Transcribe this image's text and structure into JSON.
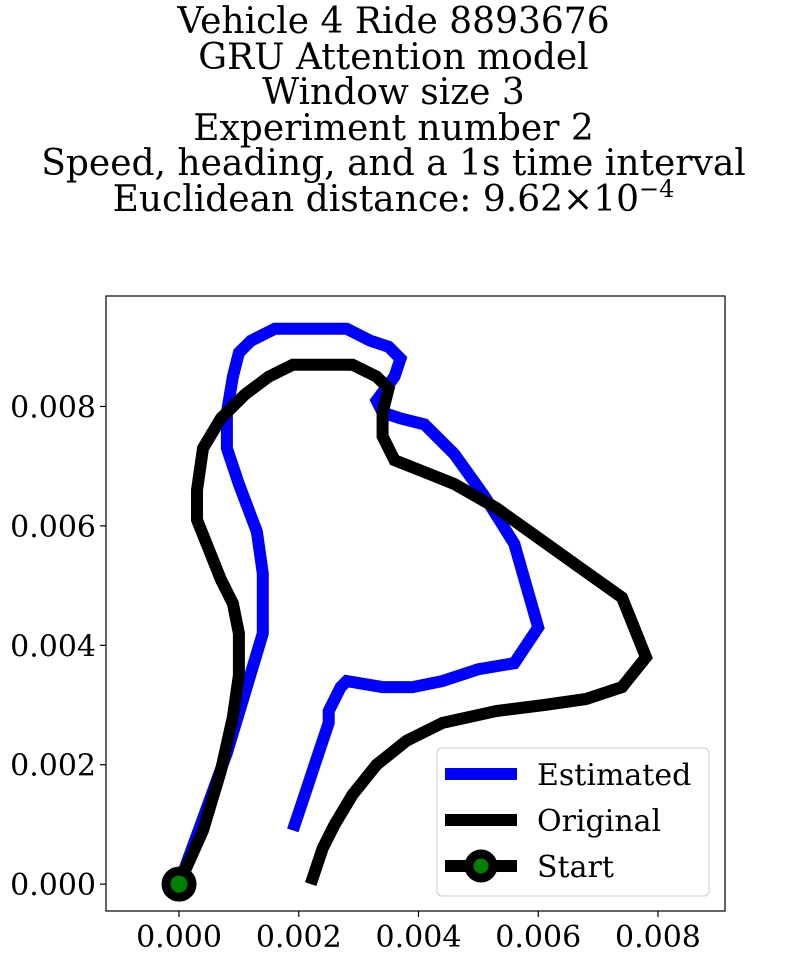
{
  "chart_data": {
    "type": "line",
    "title_lines": [
      "Vehicle 4 Ride 8893676",
      "GRU Attention model",
      "Window size 3",
      "Experiment number 2",
      "Speed, heading, and a 1s time interval"
    ],
    "distance_label": "Euclidean distance: 9.62",
    "distance_times": "×",
    "distance_base": "10",
    "distance_exponent": "−4",
    "xlim": [
      -0.00122,
      0.00912
    ],
    "ylim": [
      -0.00045,
      0.00985
    ],
    "xticks": [
      0.0,
      0.002,
      0.004,
      0.006,
      0.008
    ],
    "yticks": [
      0.0,
      0.002,
      0.004,
      0.006,
      0.008
    ],
    "xtick_labels": [
      "0.000",
      "0.002",
      "0.004",
      "0.006",
      "0.008"
    ],
    "ytick_labels": [
      "0.000",
      "0.002",
      "0.004",
      "0.006",
      "0.008"
    ],
    "grid": false,
    "legend_position": "lower-right",
    "series": [
      {
        "name": "Estimated",
        "color": "#0000ff",
        "x": [
          0.0,
          0.0004,
          0.0008,
          0.0011,
          0.0014,
          0.0014,
          0.0013,
          0.001,
          0.0008,
          0.0008,
          0.0009,
          0.001,
          0.0012,
          0.0016,
          0.0021,
          0.0025,
          0.0028,
          0.0032,
          0.0035,
          0.0037,
          0.0036,
          0.0033,
          0.0034,
          0.0037,
          0.0041,
          0.0046,
          0.0051,
          0.0056,
          0.006,
          0.0056,
          0.005,
          0.0044,
          0.0039,
          0.0034,
          0.0028,
          0.0027,
          0.0025,
          0.0025,
          0.0023,
          0.0021,
          0.0019
        ],
        "y": [
          0.0,
          0.0011,
          0.0022,
          0.0032,
          0.0042,
          0.0052,
          0.0059,
          0.0067,
          0.0073,
          0.0079,
          0.0085,
          0.0089,
          0.0091,
          0.0093,
          0.0093,
          0.0093,
          0.0093,
          0.0091,
          0.009,
          0.0088,
          0.0085,
          0.0081,
          0.0079,
          0.0078,
          0.0077,
          0.0072,
          0.0065,
          0.0057,
          0.0043,
          0.0037,
          0.0036,
          0.0034,
          0.0033,
          0.0033,
          0.0034,
          0.0033,
          0.0029,
          0.0027,
          0.0021,
          0.0015,
          0.0009
        ]
      },
      {
        "name": "Original",
        "color": "#000000",
        "x": [
          0.0,
          0.0004,
          0.0007,
          0.0009,
          0.001,
          0.001,
          0.0009,
          0.0007,
          0.0005,
          0.0003,
          0.0003,
          0.0004,
          0.0007,
          0.0011,
          0.0015,
          0.0019,
          0.0024,
          0.0029,
          0.0033,
          0.0035,
          0.0034,
          0.0034,
          0.0035,
          0.0036,
          0.0041,
          0.0046,
          0.0053,
          0.006,
          0.0067,
          0.0074,
          0.0078,
          0.0074,
          0.0068,
          0.0061,
          0.0053,
          0.0044,
          0.0038,
          0.0033,
          0.0029,
          0.0026,
          0.0024,
          0.0023,
          0.0022
        ],
        "y": [
          0.0,
          0.0009,
          0.0019,
          0.0028,
          0.0035,
          0.0042,
          0.0047,
          0.0051,
          0.0056,
          0.0061,
          0.0066,
          0.0073,
          0.0078,
          0.0082,
          0.0085,
          0.0087,
          0.0087,
          0.0087,
          0.0085,
          0.0083,
          0.0079,
          0.0075,
          0.0073,
          0.0071,
          0.0069,
          0.0067,
          0.0063,
          0.0058,
          0.0053,
          0.0048,
          0.0038,
          0.0033,
          0.0031,
          0.003,
          0.0029,
          0.0027,
          0.0024,
          0.002,
          0.0015,
          0.001,
          0.0006,
          0.0003,
          0.0
        ]
      }
    ],
    "start": {
      "name": "Start",
      "x": 0.0,
      "y": 0.0,
      "marker_color": "#008000",
      "edge_color": "#000000"
    }
  }
}
